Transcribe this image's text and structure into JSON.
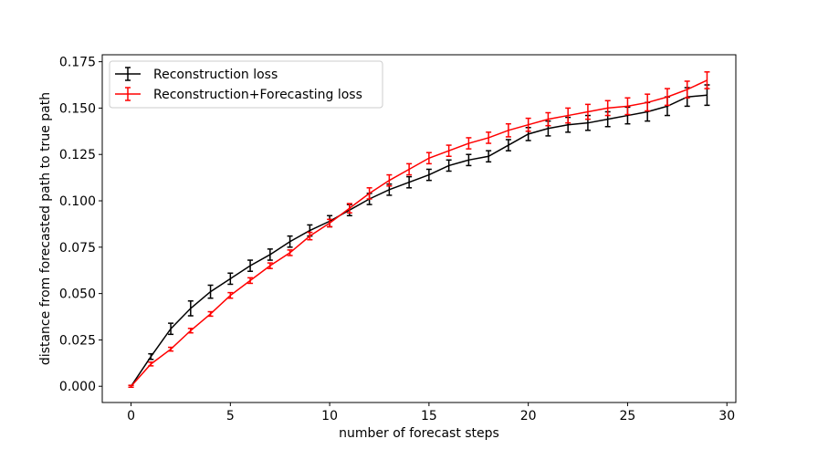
{
  "chart_data": {
    "type": "line",
    "xlabel": "number of forecast steps",
    "ylabel": "distance from forecasted path to true path",
    "xlim": [
      -1.45,
      30.45
    ],
    "ylim": [
      -0.00875,
      0.17875
    ],
    "xticks": [
      0,
      5,
      10,
      15,
      20,
      25,
      30
    ],
    "xtick_labels": [
      "0",
      "5",
      "10",
      "15",
      "20",
      "25",
      "30"
    ],
    "yticks": [
      0.0,
      0.025,
      0.05,
      0.075,
      0.1,
      0.125,
      0.15,
      0.175
    ],
    "ytick_labels": [
      "0.000",
      "0.025",
      "0.050",
      "0.075",
      "0.100",
      "0.125",
      "0.150",
      "0.175"
    ],
    "grid": false,
    "legend_position": "upper-left",
    "x": [
      0,
      1,
      2,
      3,
      4,
      5,
      6,
      7,
      8,
      9,
      10,
      11,
      12,
      13,
      14,
      15,
      16,
      17,
      18,
      19,
      20,
      21,
      22,
      23,
      24,
      25,
      26,
      27,
      28,
      29
    ],
    "series": [
      {
        "name": "Reconstruction loss",
        "color": "#000000",
        "values": [
          0.0,
          0.016,
          0.031,
          0.042,
          0.051,
          0.058,
          0.065,
          0.071,
          0.078,
          0.084,
          0.089,
          0.095,
          0.101,
          0.106,
          0.11,
          0.114,
          0.119,
          0.122,
          0.124,
          0.13,
          0.136,
          0.139,
          0.141,
          0.142,
          0.144,
          0.146,
          0.148,
          0.151,
          0.156,
          0.157
        ],
        "errors": [
          0.0005,
          0.0015,
          0.003,
          0.004,
          0.0035,
          0.003,
          0.003,
          0.003,
          0.003,
          0.003,
          0.003,
          0.003,
          0.003,
          0.003,
          0.003,
          0.003,
          0.003,
          0.003,
          0.003,
          0.003,
          0.0035,
          0.004,
          0.004,
          0.004,
          0.004,
          0.0045,
          0.005,
          0.005,
          0.005,
          0.0055
        ]
      },
      {
        "name": "Reconstruction+Forecasting loss",
        "color": "#ff0000",
        "values": [
          0.0,
          0.012,
          0.02,
          0.03,
          0.039,
          0.049,
          0.057,
          0.065,
          0.072,
          0.081,
          0.088,
          0.096,
          0.104,
          0.111,
          0.117,
          0.123,
          0.127,
          0.131,
          0.134,
          0.138,
          0.141,
          0.144,
          0.146,
          0.148,
          0.15,
          0.151,
          0.153,
          0.156,
          0.16,
          0.165
        ],
        "errors": [
          0.0005,
          0.001,
          0.001,
          0.0012,
          0.0012,
          0.0015,
          0.0015,
          0.0015,
          0.0015,
          0.002,
          0.002,
          0.0025,
          0.003,
          0.003,
          0.003,
          0.003,
          0.003,
          0.003,
          0.003,
          0.0035,
          0.0035,
          0.0035,
          0.004,
          0.004,
          0.004,
          0.0045,
          0.0045,
          0.0045,
          0.0045,
          0.0045
        ]
      }
    ]
  }
}
